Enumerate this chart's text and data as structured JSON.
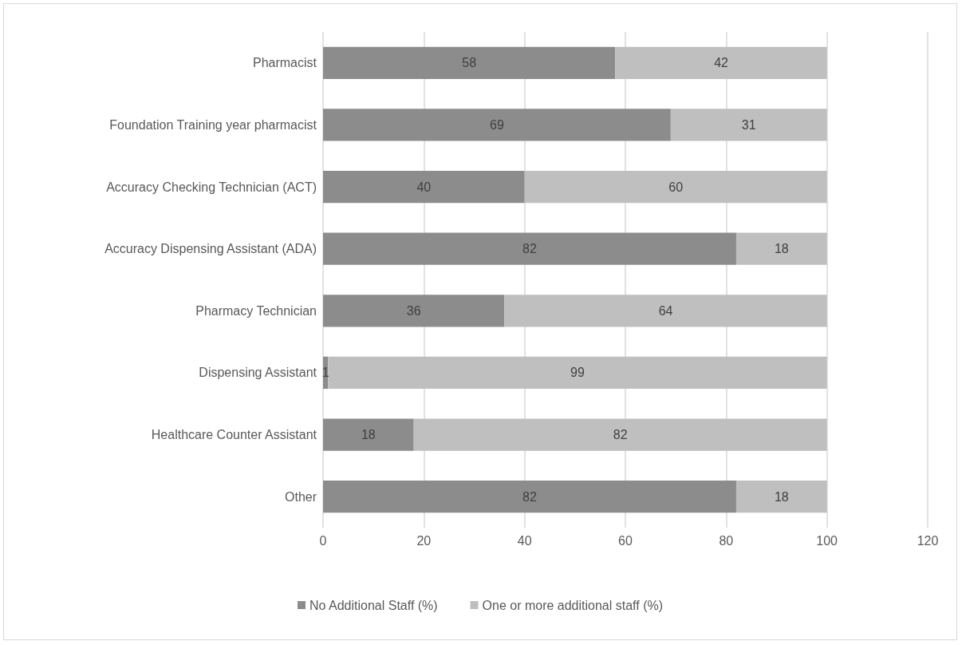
{
  "chart_data": {
    "type": "bar",
    "orientation": "horizontal",
    "stacked": true,
    "categories": [
      "Pharmacist",
      "Foundation Training year pharmacist",
      "Accuracy Checking Technician (ACT)",
      "Accuracy Dispensing Assistant (ADA)",
      "Pharmacy Technician",
      "Dispensing Assistant",
      "Healthcare Counter Assistant",
      "Other"
    ],
    "series": [
      {
        "name": "No Additional Staff (%)",
        "color": "#8c8c8c",
        "values": [
          58,
          69,
          40,
          82,
          36,
          1,
          18,
          82
        ]
      },
      {
        "name": "One or more additional staff (%)",
        "color": "#bfbfbf",
        "values": [
          42,
          31,
          60,
          18,
          64,
          99,
          82,
          18
        ]
      }
    ],
    "xlim": [
      0,
      120
    ],
    "xticks": [
      0,
      20,
      40,
      60,
      80,
      100,
      120
    ],
    "grid": "x",
    "legend": "bottom",
    "data_labels": true
  }
}
